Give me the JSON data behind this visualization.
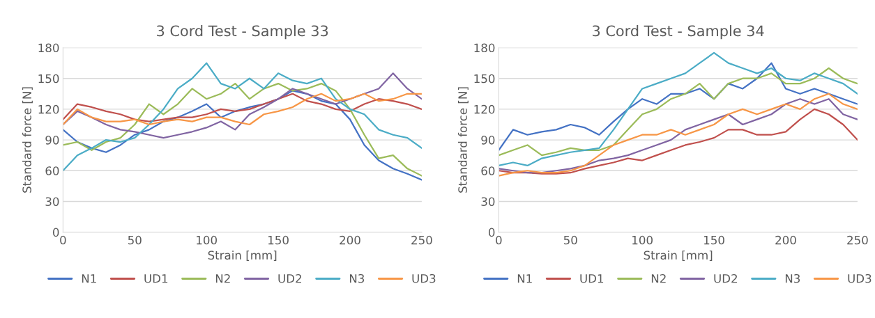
{
  "chart_data": [
    {
      "type": "line",
      "title": "3 Cord Test - Sample 33",
      "xlabel": "Strain [mm]",
      "ylabel": "Standard force [N]",
      "x": [
        0,
        10,
        20,
        30,
        40,
        50,
        60,
        70,
        80,
        90,
        100,
        110,
        120,
        130,
        140,
        150,
        160,
        170,
        180,
        190,
        200,
        210,
        220,
        230,
        240,
        250
      ],
      "series": [
        {
          "name": "N1",
          "color": "#4472c4",
          "values": [
            100,
            88,
            82,
            78,
            85,
            95,
            100,
            108,
            112,
            118,
            125,
            112,
            118,
            122,
            125,
            130,
            138,
            135,
            128,
            125,
            110,
            85,
            70,
            62,
            57,
            51
          ]
        },
        {
          "name": "UD1",
          "color": "#c0504d",
          "values": [
            110,
            125,
            122,
            118,
            115,
            110,
            108,
            110,
            112,
            112,
            115,
            120,
            118,
            120,
            125,
            130,
            135,
            128,
            125,
            120,
            118,
            125,
            130,
            128,
            125,
            120
          ]
        },
        {
          "name": "N2",
          "color": "#9bbb59",
          "values": [
            85,
            88,
            80,
            88,
            92,
            105,
            125,
            115,
            125,
            140,
            130,
            135,
            145,
            130,
            140,
            145,
            138,
            140,
            145,
            138,
            120,
            95,
            72,
            75,
            62,
            55
          ]
        },
        {
          "name": "UD2",
          "color": "#8064a2",
          "values": [
            105,
            118,
            112,
            105,
            100,
            98,
            95,
            92,
            95,
            98,
            102,
            108,
            100,
            115,
            122,
            130,
            140,
            135,
            130,
            125,
            130,
            135,
            140,
            155,
            140,
            130
          ]
        },
        {
          "name": "N3",
          "color": "#4bacc6",
          "values": [
            60,
            75,
            82,
            90,
            88,
            92,
            105,
            120,
            140,
            150,
            165,
            145,
            140,
            150,
            140,
            155,
            148,
            145,
            150,
            130,
            120,
            115,
            100,
            95,
            92,
            82
          ]
        },
        {
          "name": "UD3",
          "color": "#f79646",
          "values": [
            105,
            120,
            112,
            108,
            108,
            110,
            105,
            108,
            110,
            108,
            112,
            112,
            108,
            105,
            115,
            118,
            122,
            130,
            135,
            128,
            130,
            135,
            128,
            130,
            135,
            135
          ]
        }
      ],
      "xlim": [
        0,
        250
      ],
      "xticks": [
        0,
        50,
        100,
        150,
        200,
        250
      ],
      "ylim": [
        0,
        180
      ],
      "yticks": [
        0,
        30,
        60,
        90,
        120,
        150,
        180
      ],
      "grid": "y",
      "legend": "bottom",
      "line_style": "solid"
    },
    {
      "type": "line",
      "title": "3 Cord Test - Sample 34",
      "xlabel": "Strain [mm]",
      "ylabel": "Standard force [N]",
      "x": [
        0,
        10,
        20,
        30,
        40,
        50,
        60,
        70,
        80,
        90,
        100,
        110,
        120,
        130,
        140,
        150,
        160,
        170,
        180,
        190,
        200,
        210,
        220,
        230,
        240,
        250
      ],
      "series": [
        {
          "name": "N1",
          "color": "#4472c4",
          "values": [
            80,
            100,
            95,
            98,
            100,
            105,
            102,
            95,
            108,
            120,
            130,
            125,
            135,
            135,
            140,
            130,
            145,
            140,
            150,
            165,
            140,
            135,
            140,
            135,
            130,
            125
          ]
        },
        {
          "name": "UD1",
          "color": "#c0504d",
          "values": [
            60,
            58,
            58,
            57,
            57,
            58,
            62,
            65,
            68,
            72,
            70,
            75,
            80,
            85,
            88,
            92,
            100,
            100,
            95,
            95,
            98,
            110,
            120,
            115,
            105,
            90
          ]
        },
        {
          "name": "N2",
          "color": "#9bbb59",
          "values": [
            75,
            80,
            85,
            75,
            78,
            82,
            80,
            80,
            85,
            100,
            115,
            120,
            130,
            135,
            145,
            130,
            145,
            150,
            150,
            155,
            145,
            145,
            150,
            160,
            150,
            145
          ]
        },
        {
          "name": "UD2",
          "color": "#8064a2",
          "values": [
            62,
            60,
            58,
            58,
            60,
            62,
            65,
            70,
            72,
            75,
            80,
            85,
            90,
            100,
            105,
            110,
            115,
            105,
            110,
            115,
            125,
            130,
            125,
            130,
            115,
            110
          ]
        },
        {
          "name": "N3",
          "color": "#4bacc6",
          "values": [
            65,
            68,
            65,
            72,
            75,
            78,
            80,
            82,
            100,
            120,
            140,
            145,
            150,
            155,
            165,
            175,
            165,
            160,
            155,
            160,
            150,
            148,
            155,
            150,
            145,
            135
          ]
        },
        {
          "name": "UD3",
          "color": "#f79646",
          "values": [
            55,
            58,
            60,
            58,
            58,
            60,
            65,
            75,
            85,
            90,
            95,
            95,
            100,
            95,
            100,
            105,
            115,
            120,
            115,
            120,
            125,
            120,
            130,
            135,
            125,
            120
          ]
        }
      ],
      "xlim": [
        0,
        250
      ],
      "xticks": [
        0,
        50,
        100,
        150,
        200,
        250
      ],
      "ylim": [
        0,
        180
      ],
      "yticks": [
        0,
        30,
        60,
        90,
        120,
        150,
        180
      ],
      "grid": "y",
      "legend": "bottom",
      "line_style": "solid"
    }
  ]
}
